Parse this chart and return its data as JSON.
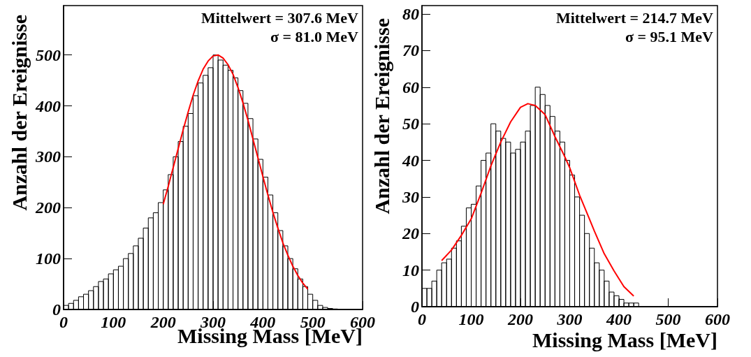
{
  "chart_data": [
    {
      "type": "histogram",
      "xlabel": "Missing Mass [MeV]",
      "ylabel": "Anzahl der Ereignisse",
      "color": "#000000",
      "annotations": [
        "Mittelwert = 307.6 MeV",
        "σ = 81.0 MeV"
      ],
      "bins": [
        0,
        10,
        20,
        30,
        40,
        50,
        60,
        70,
        80,
        90,
        100,
        110,
        120,
        130,
        140,
        150,
        160,
        170,
        180,
        190,
        200,
        210,
        220,
        230,
        240,
        250,
        260,
        270,
        280,
        290,
        300,
        310,
        320,
        330,
        340,
        350,
        360,
        370,
        380,
        390,
        400,
        410,
        420,
        430,
        440,
        450,
        460,
        470,
        480,
        490,
        500,
        510,
        520,
        530,
        540,
        550,
        560,
        570,
        580,
        590,
        600
      ],
      "values": [
        8,
        12,
        18,
        25,
        30,
        37,
        45,
        55,
        60,
        70,
        78,
        85,
        100,
        110,
        125,
        140,
        160,
        180,
        190,
        210,
        235,
        265,
        300,
        330,
        360,
        385,
        420,
        445,
        460,
        475,
        500,
        490,
        480,
        470,
        455,
        430,
        405,
        375,
        335,
        295,
        260,
        225,
        190,
        155,
        125,
        100,
        80,
        60,
        45,
        30,
        18,
        8,
        4,
        2,
        1,
        0,
        0,
        0,
        0,
        0
      ],
      "series": [
        {
          "type": "line",
          "color": "#ff0000",
          "x": [
            200,
            210,
            220,
            230,
            240,
            250,
            260,
            270,
            280,
            290,
            300,
            310,
            320,
            330,
            340,
            350,
            360,
            370,
            380,
            390,
            400,
            410,
            420,
            430,
            440,
            450,
            460,
            470,
            480,
            490
          ],
          "values": [
            207,
            242,
            279,
            316,
            353,
            388,
            421,
            449,
            472,
            488,
            498,
            500,
            494,
            481,
            462,
            436,
            406,
            372,
            335,
            298,
            261,
            225,
            191,
            160,
            131,
            107,
            85,
            67,
            52,
            40
          ]
        }
      ],
      "marker": "none",
      "xlim": [
        0,
        600
      ],
      "xticks": [
        0,
        100,
        200,
        300,
        400,
        500,
        600
      ],
      "ylim": [
        0,
        597
      ],
      "yticks": [
        0,
        100,
        200,
        300,
        400,
        500
      ]
    },
    {
      "type": "histogram",
      "xlabel": "Missing Mass [MeV]",
      "ylabel": "Anzahl der Ereignisse",
      "color": "#000000",
      "annotations": [
        "Mittelwert = 214.7 MeV",
        "σ = 95.1 MeV"
      ],
      "bins": [
        0,
        10,
        20,
        30,
        40,
        50,
        60,
        70,
        80,
        90,
        100,
        110,
        120,
        130,
        140,
        150,
        160,
        170,
        180,
        190,
        200,
        210,
        220,
        230,
        240,
        250,
        260,
        270,
        280,
        290,
        300,
        310,
        320,
        330,
        340,
        350,
        360,
        370,
        380,
        390,
        400,
        410,
        420,
        430,
        440,
        450,
        460,
        470,
        480,
        490,
        500,
        510,
        520,
        530,
        540,
        550,
        560,
        570,
        580,
        590,
        600
      ],
      "values": [
        5,
        5,
        7,
        10,
        12,
        13,
        16,
        18,
        22,
        27,
        28,
        33,
        40,
        42,
        50,
        48,
        46,
        45,
        42,
        43,
        45,
        48,
        55,
        60,
        58,
        55,
        52,
        48,
        45,
        40,
        36,
        30,
        25,
        20,
        16,
        12,
        10,
        7,
        4,
        3,
        2,
        1,
        1,
        1,
        0,
        0,
        0,
        0,
        0,
        0,
        0,
        0,
        0,
        0,
        0,
        0,
        0,
        0,
        0,
        0
      ],
      "series": [
        {
          "type": "line",
          "color": "#ff0000",
          "x": [
            40,
            60,
            80,
            100,
            120,
            140,
            160,
            180,
            200,
            215,
            230,
            250,
            270,
            290,
            300,
            320,
            340,
            350,
            370,
            390,
            410,
            430
          ],
          "values": [
            12.6,
            15.5,
            19.5,
            24,
            31,
            38.5,
            45,
            50.5,
            54.5,
            55.5,
            55,
            52.5,
            46.5,
            41,
            38,
            30.5,
            24,
            20.7,
            14.5,
            9.8,
            5.5,
            2.9
          ]
        }
      ],
      "marker": "none",
      "xlim": [
        0,
        600
      ],
      "xticks": [
        0,
        100,
        200,
        300,
        400,
        500,
        600
      ],
      "ylim": [
        0,
        82.3
      ],
      "yticks": [
        0,
        10,
        20,
        30,
        40,
        50,
        60,
        70,
        80
      ]
    }
  ]
}
